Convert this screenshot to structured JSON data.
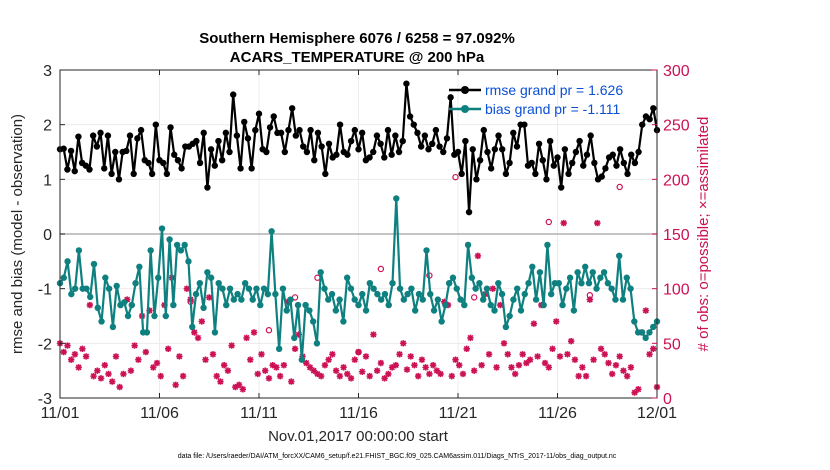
{
  "chart_data": {
    "type": "line",
    "title": "Southern Hemisphere 6076 / 6258 = 97.092%",
    "subtitle": "ACARS_TEMPERATURE @ 200 hPa",
    "xlabel": "Nov.01,2017 00:00:00 start",
    "ylabel_left": "rmse and bias (model - observation)",
    "ylabel_right": "# of obs: o=possible; ×=assimilated",
    "x_ticks": [
      "11/01",
      "11/06",
      "11/11",
      "11/16",
      "11/21",
      "11/26",
      "12/01"
    ],
    "y_left_ticks": [
      "-3",
      "-2",
      "-1",
      "0",
      "1",
      "2",
      "3"
    ],
    "y_right_ticks": [
      "0",
      "50",
      "100",
      "150",
      "200",
      "250",
      "300"
    ],
    "xlim": [
      0,
      30
    ],
    "ylim_left": [
      -3,
      3
    ],
    "ylim_right": [
      0,
      300
    ],
    "footer": "data file: /Users/raeder/DAI/ATM_forcXX/CAM6_setup/f.e21.FHIST_BGC.f09_025.CAM6assim.011/Diags_NTrS_2017-11/obs_diag_output.nc",
    "colors": {
      "rmse": "#000000",
      "bias": "#0f8080",
      "obs": "#cc1155",
      "legend_text": "#0a4fd6",
      "zero_line": "#b0b0b0"
    },
    "series": [
      {
        "name": "rmse grand pr = 1.626",
        "values": [
          1.55,
          1.56,
          1.18,
          1.52,
          1.15,
          1.78,
          1.3,
          1.25,
          1.18,
          1.8,
          1.6,
          1.85,
          1.2,
          1.8,
          1.1,
          1.5,
          1.0,
          1.5,
          1.52,
          1.8,
          1.1,
          1.75,
          1.9,
          1.35,
          1.3,
          1.1,
          2.0,
          1.35,
          1.3,
          1.1,
          1.95,
          1.45,
          1.35,
          1.2,
          1.6,
          1.6,
          1.65,
          1.7,
          1.3,
          1.85,
          0.85,
          1.55,
          1.25,
          1.7,
          1.35,
          1.85,
          1.5,
          2.55,
          1.8,
          1.2,
          2.05,
          1.75,
          1.2,
          1.9,
          2.2,
          1.55,
          1.5,
          1.95,
          2.15,
          1.85,
          1.85,
          1.5,
          1.9,
          2.3,
          1.8,
          1.9,
          1.6,
          1.5,
          1.9,
          1.35,
          1.85,
          1.6,
          1.1,
          1.65,
          1.4,
          1.45,
          2.0,
          1.5,
          1.45,
          1.7,
          1.9,
          1.55,
          1.85,
          1.35,
          1.4,
          1.5,
          1.8,
          1.65,
          1.4,
          1.9,
          1.45,
          1.8,
          1.5,
          1.7,
          2.75,
          2.15,
          2.0,
          1.85,
          1.6,
          1.8,
          1.55,
          1.65,
          1.9,
          1.6,
          1.5,
          1.75,
          2.5,
          1.45,
          1.5,
          1.1,
          1.7,
          0.4,
          1.55,
          1.0,
          1.35,
          1.9,
          1.5,
          1.2,
          1.55,
          1.8,
          1.55,
          1.1,
          1.3,
          1.85,
          1.6,
          2.0,
          2.0,
          1.25,
          1.3,
          1.1,
          1.65,
          1.35,
          1.0,
          1.7,
          1.25,
          1.4,
          0.85,
          1.55,
          1.1,
          1.3,
          1.5,
          1.7,
          1.25,
          1.45,
          1.8,
          1.3,
          1.0,
          1.05,
          1.2,
          1.4,
          1.45,
          1.25,
          1.55,
          1.3,
          1.1,
          1.45,
          1.3,
          1.5,
          2.0,
          2.15,
          2.1,
          2.3,
          1.9
        ]
      },
      {
        "name": "bias grand pr = -1.111",
        "values": [
          -0.9,
          -0.8,
          -0.5,
          -1.1,
          -1.0,
          -0.3,
          -1.0,
          -1.0,
          -1.15,
          -0.55,
          -1.35,
          -1.6,
          -0.8,
          -1.0,
          -1.7,
          -0.95,
          -1.3,
          -1.25,
          -1.5,
          -1.3,
          -0.9,
          -0.6,
          -1.8,
          -1.8,
          -0.3,
          -1.5,
          -0.8,
          0.1,
          -1.5,
          -0.1,
          -1.3,
          -0.2,
          -0.3,
          -0.2,
          -0.5,
          -1.7,
          -1.1,
          -0.9,
          -1.35,
          -0.7,
          -0.8,
          -1.8,
          -0.9,
          -1.0,
          -1.3,
          -1.0,
          -1.2,
          -1.1,
          -1.2,
          -0.9,
          -1.0,
          -1.2,
          -1.0,
          -1.3,
          -1.0,
          -1.1,
          0.05,
          -1.1,
          -2.1,
          -1.0,
          -1.4,
          -1.2,
          -1.9,
          -1.3,
          -2.3,
          -1.3,
          -1.4,
          -1.6,
          -2.0,
          -0.7,
          -1.0,
          -1.2,
          -1.1,
          -1.4,
          -1.2,
          -1.6,
          -0.8,
          -1.0,
          -1.2,
          -1.3,
          -1.1,
          -1.4,
          -0.9,
          -1.0,
          -1.1,
          -1.2,
          -1.1,
          -1.3,
          -0.9,
          0.65,
          -1.0,
          -1.2,
          -1.1,
          -1.0,
          -1.4,
          -1.1,
          -1.2,
          -0.3,
          -1.1,
          -1.4,
          -1.2,
          -1.6,
          -1.3,
          -0.9,
          -0.8,
          -1.0,
          -1.2,
          -1.3,
          -0.2,
          -0.8,
          -1.0,
          -0.9,
          -1.2,
          -1.0,
          -1.3,
          -1.4,
          -0.9,
          -1.1,
          -1.7,
          -1.5,
          -1.2,
          -1.0,
          -1.4,
          -1.1,
          -0.9,
          -0.6,
          -1.2,
          -0.7,
          -1.3,
          -0.2,
          -1.1,
          -0.9,
          -0.9,
          -1.3,
          -1.0,
          -0.8,
          -1.4,
          -0.7,
          -0.9,
          -0.6,
          -0.9,
          -0.7,
          -1.0,
          -0.8,
          -0.7,
          -0.9,
          -1.0,
          -1.2,
          -0.4,
          -1.2,
          -0.8,
          -1.0,
          -1.6,
          -1.8,
          -1.8,
          -1.9,
          -1.8,
          -1.7,
          -1.6
        ]
      }
    ],
    "obs_possible_idx": [
      35,
      56,
      63,
      69,
      80,
      86,
      99,
      106,
      111,
      131,
      142,
      150
    ],
    "obs_possible": [
      88,
      62,
      92,
      110,
      42,
      118,
      112,
      202,
      92,
      161,
      94,
      193
    ],
    "obs_assimilated": [
      50,
      42,
      48,
      35,
      40,
      28,
      45,
      38,
      85,
      20,
      25,
      18,
      30,
      22,
      15,
      38,
      10,
      22,
      90,
      25,
      48,
      35,
      75,
      42,
      80,
      28,
      32,
      20,
      85,
      45,
      110,
      12,
      38,
      20,
      100,
      90,
      60,
      55,
      70,
      35,
      92,
      40,
      20,
      15,
      30,
      25,
      48,
      10,
      12,
      8,
      55,
      35,
      60,
      22,
      40,
      25,
      18,
      30,
      28,
      20,
      30,
      88,
      15,
      45,
      58,
      38,
      32,
      28,
      25,
      22,
      20,
      30,
      35,
      40,
      25,
      20,
      28,
      22,
      18,
      35,
      42,
      24,
      38,
      20,
      58,
      25,
      32,
      18,
      22,
      28,
      30,
      40,
      50,
      26,
      38,
      30,
      20,
      35,
      28,
      22,
      30,
      25,
      22,
      88,
      85,
      20,
      35,
      30,
      22,
      45,
      55,
      25,
      130,
      30,
      95,
      40,
      100,
      28,
      85,
      50,
      40,
      28,
      22,
      30,
      40,
      32,
      35,
      68,
      38,
      85,
      32,
      28,
      45,
      70,
      38,
      160,
      40,
      52,
      35,
      20,
      28,
      20,
      90,
      35,
      160,
      45,
      40,
      32,
      22,
      30,
      38,
      25,
      20,
      28,
      5,
      8,
      60,
      80,
      40,
      45,
      10
    ]
  }
}
